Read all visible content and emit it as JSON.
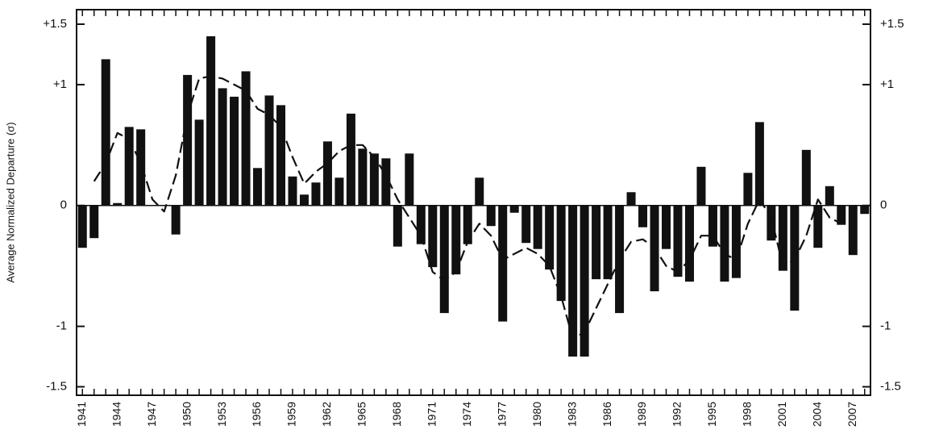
{
  "chart_data": {
    "type": "bar",
    "y_label": "Average Normalized Departure (σ)",
    "categories": [
      "1941",
      null,
      null,
      "1944",
      null,
      null,
      "1947",
      null,
      null,
      "1950",
      null,
      null,
      "1953",
      null,
      null,
      "1956",
      null,
      null,
      "1959",
      null,
      null,
      "1962",
      null,
      null,
      "1965",
      null,
      null,
      "1968",
      null,
      null,
      "1971",
      null,
      null,
      "1974",
      null,
      null,
      "1977",
      null,
      null,
      "1980",
      null,
      null,
      "1983",
      null,
      null,
      "1986",
      null,
      null,
      "1989",
      null,
      null,
      "1992",
      null,
      null,
      "1995",
      null,
      null,
      "1998",
      null,
      null,
      "2001",
      null,
      null,
      "2004",
      null,
      null,
      "2007",
      null
    ],
    "series": [
      {
        "type": "bar",
        "color": "#111111",
        "values": [
          -0.35,
          -0.27,
          1.21,
          0.02,
          0.65,
          0.63,
          0,
          0,
          -0.24,
          1.08,
          0.71,
          1.4,
          0.97,
          0.9,
          1.11,
          0.31,
          0.91,
          0.83,
          0.24,
          0.09,
          0.19,
          0.53,
          0.23,
          0.76,
          0.47,
          0.43,
          0.39,
          -0.34,
          0.43,
          -0.32,
          -0.51,
          -0.89,
          -0.57,
          -0.32,
          0.23,
          -0.17,
          -0.96,
          -0.06,
          -0.31,
          -0.36,
          -0.53,
          -0.79,
          -1.25,
          -1.25,
          -0.61,
          -0.61,
          -0.89,
          0.11,
          -0.18,
          -0.71,
          -0.36,
          -0.59,
          -0.63,
          0.32,
          -0.34,
          -0.63,
          -0.6,
          0.27,
          0.69,
          -0.29,
          -0.54,
          -0.87,
          0.46,
          -0.35,
          0.16,
          -0.16,
          -0.41,
          -0.07
        ]
      },
      {
        "type": "line",
        "color": "#111111",
        "dashed": true,
        "values": [
          null,
          0.2,
          0.35,
          0.6,
          0.55,
          0.35,
          0.05,
          -0.05,
          0.25,
          0.75,
          1.05,
          1.07,
          1.05,
          1.0,
          0.95,
          0.8,
          0.75,
          0.65,
          0.4,
          0.18,
          0.28,
          0.35,
          0.45,
          0.5,
          0.5,
          0.4,
          0.25,
          0.05,
          -0.1,
          -0.25,
          -0.55,
          -0.62,
          -0.55,
          -0.3,
          -0.15,
          -0.25,
          -0.45,
          -0.4,
          -0.35,
          -0.4,
          -0.5,
          -0.75,
          -1.1,
          -1.05,
          -0.85,
          -0.65,
          -0.45,
          -0.3,
          -0.28,
          -0.35,
          -0.5,
          -0.55,
          -0.45,
          -0.25,
          -0.25,
          -0.4,
          -0.45,
          -0.15,
          0.05,
          -0.1,
          -0.5,
          -0.45,
          -0.25,
          0.05,
          -0.1,
          -0.15,
          -0.15,
          null
        ]
      }
    ],
    "ylim": [
      -1.57,
      1.62
    ],
    "yticks": [
      {
        "value": -1.5,
        "label": "-1.5"
      },
      -1,
      0,
      {
        "value": 1,
        "label": "+1"
      },
      {
        "value": 1.5,
        "label": "+1.5"
      }
    ],
    "y2lim": [
      -1.57,
      1.62
    ],
    "y2ticks": [
      {
        "value": -1.5,
        "label": "-1.5"
      },
      -1,
      0,
      {
        "value": 1,
        "label": "+1"
      },
      {
        "value": 1.5,
        "label": "+1.5"
      }
    ]
  }
}
